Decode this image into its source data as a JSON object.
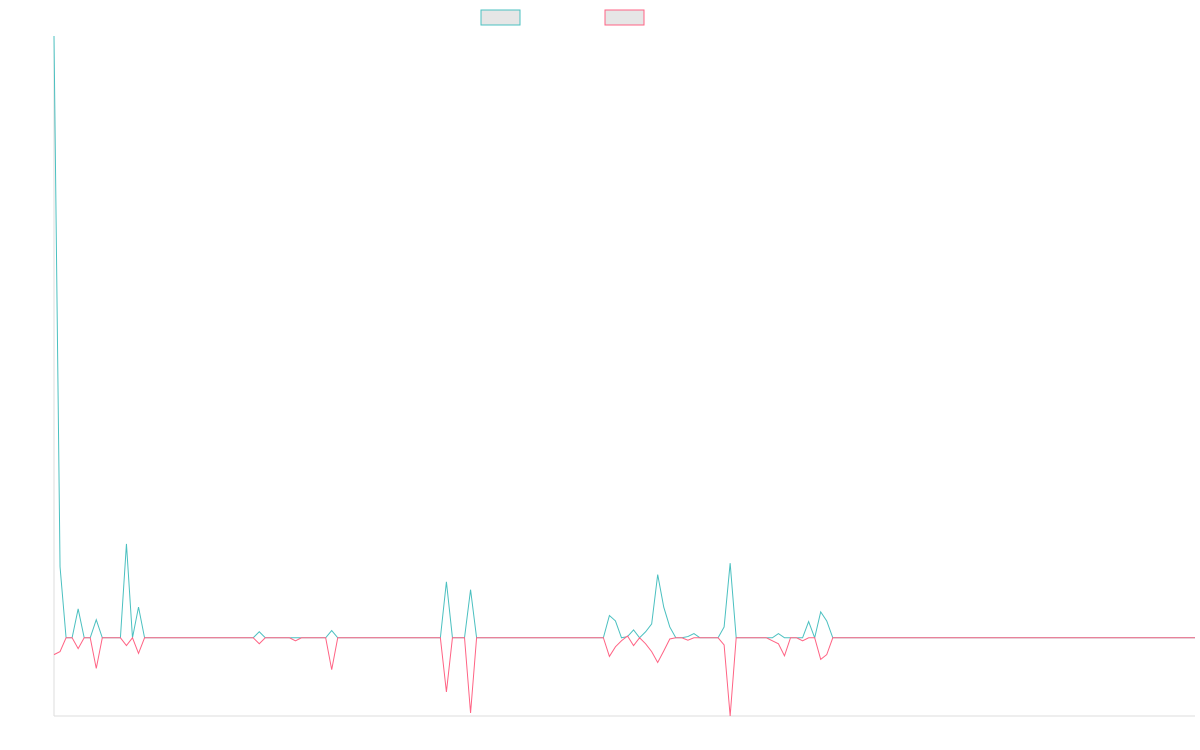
{
  "chart_data": {
    "type": "line",
    "ylim": [
      -13,
      100
    ],
    "series": [
      {
        "color": "#4bc0c0",
        "values": [
          100,
          11.8,
          0,
          0,
          4.8,
          0,
          0,
          3,
          0,
          0,
          0,
          0,
          15.6,
          0,
          5.1,
          0,
          0,
          0,
          0,
          0,
          0,
          0,
          0,
          0,
          0,
          0,
          0,
          0,
          0,
          0,
          0,
          0,
          0,
          0,
          1,
          0,
          0,
          0,
          0,
          0,
          0,
          0,
          0,
          0,
          0,
          0,
          1.2,
          0,
          0,
          0,
          0,
          0,
          0,
          0,
          0,
          0,
          0,
          0,
          0,
          0,
          0,
          0,
          0,
          0,
          0,
          9.3,
          0,
          0,
          0,
          8,
          0,
          0,
          0,
          0,
          0,
          0,
          0,
          0,
          0,
          0,
          0,
          0,
          0,
          0,
          0,
          0,
          0,
          0,
          0,
          0,
          0,
          0,
          3.7,
          2.8,
          0,
          0.2,
          1.3,
          0,
          1,
          2.3,
          10.5,
          5.1,
          1.8,
          0,
          0,
          0.2,
          0.7,
          0,
          0,
          0,
          0,
          1.8,
          12.4,
          0,
          0,
          0,
          0,
          0,
          0,
          0,
          0.7,
          0,
          0,
          0,
          0,
          2.7,
          0,
          4.3,
          2.8,
          0,
          0,
          0,
          0,
          0,
          0,
          0,
          0,
          0,
          0,
          0,
          0,
          0,
          0,
          0,
          0,
          0,
          0,
          0,
          0,
          0,
          0,
          0,
          0,
          0,
          0,
          0,
          0,
          0,
          0,
          0,
          0,
          0,
          0,
          0,
          0,
          0,
          0,
          0,
          0,
          0,
          0,
          0,
          0,
          0,
          0,
          0,
          0,
          0,
          0,
          0,
          0,
          0,
          0,
          0,
          0,
          0,
          0,
          0,
          0,
          0
        ]
      },
      {
        "color": "#ff6384",
        "values": [
          -2.8,
          -2.3,
          0,
          0,
          -1.8,
          0,
          0,
          -5.1,
          0,
          0,
          0,
          0,
          -1.3,
          0,
          -2.6,
          0,
          0,
          0,
          0,
          0,
          0,
          0,
          0,
          0,
          0,
          0,
          0,
          0,
          0,
          0,
          0,
          0,
          0,
          0,
          -1,
          0,
          0,
          0,
          0,
          0,
          -0.5,
          0,
          0,
          0,
          0,
          0,
          -5.3,
          0,
          0,
          0,
          0,
          0,
          0,
          0,
          0,
          0,
          0,
          0,
          0,
          0,
          0,
          0,
          0,
          0,
          0,
          -9,
          0,
          0,
          0,
          -12.5,
          0,
          0,
          0,
          0,
          0,
          0,
          0,
          0,
          0,
          0,
          0,
          0,
          0,
          0,
          0,
          0,
          0,
          0,
          0,
          0,
          0,
          0,
          -3.1,
          -1.5,
          -0.5,
          0.3,
          -1.3,
          0,
          -1,
          -2.3,
          -4.1,
          -2.2,
          -0.2,
          0,
          0,
          -0.4,
          0,
          0,
          0,
          0,
          0,
          -1.2,
          -13,
          0,
          0,
          0,
          0,
          0,
          0,
          -0.5,
          -1,
          -3,
          0,
          0,
          -0.5,
          0,
          0,
          -3.6,
          -2.8,
          0,
          0,
          0,
          0,
          0,
          0,
          0,
          0,
          0,
          0,
          0,
          0,
          0,
          0,
          0,
          0,
          0,
          0,
          0,
          0,
          0,
          0,
          0,
          0,
          0,
          0,
          0,
          0,
          0,
          0,
          0,
          0,
          0,
          0,
          0,
          0,
          0,
          0,
          0,
          0,
          0,
          0,
          0,
          0,
          0,
          0,
          0,
          0,
          0,
          0,
          0,
          0,
          0,
          0,
          0,
          0,
          0,
          0,
          0,
          0,
          0
        ]
      }
    ]
  }
}
